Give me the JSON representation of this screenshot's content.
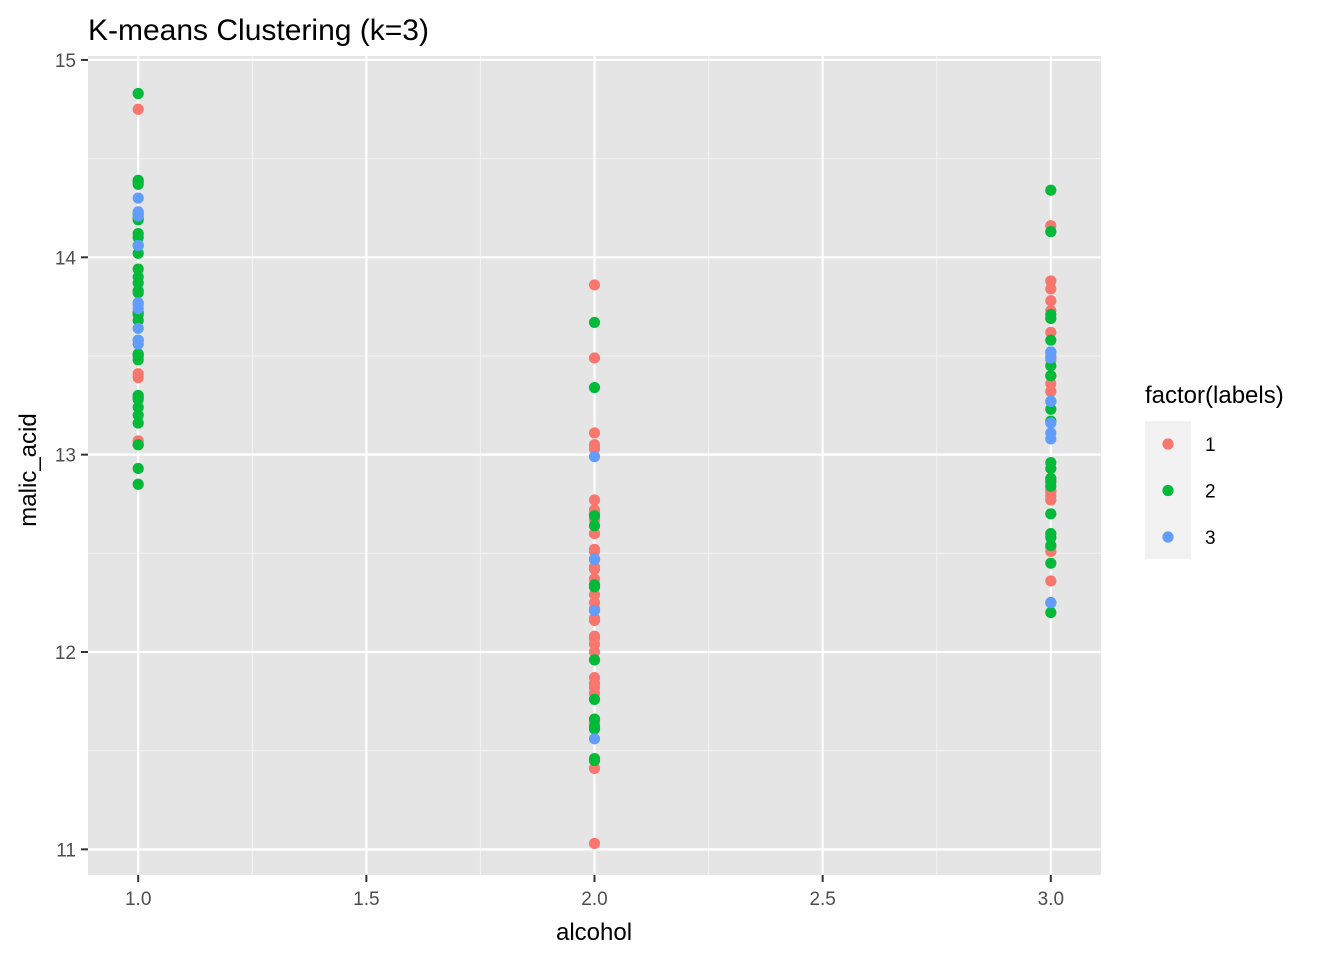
{
  "chart_data": {
    "type": "scatter",
    "title": "K-means Clustering (k=3)",
    "xlabel": "alcohol",
    "ylabel": "malic_acid",
    "xlim": [
      0.89,
      3.11
    ],
    "ylim": [
      10.87,
      15.02
    ],
    "x_ticks": [
      1.0,
      1.5,
      2.0,
      2.5,
      3.0
    ],
    "x_tick_labels": [
      "1.0",
      "1.5",
      "2.0",
      "2.5",
      "3.0"
    ],
    "y_ticks": [
      11,
      12,
      13,
      14,
      15
    ],
    "y_tick_labels": [
      "11",
      "12",
      "13",
      "14",
      "15"
    ],
    "grid": true,
    "legend_title": "factor(labels)",
    "legend_position": "right",
    "series": [
      {
        "name": "1",
        "color": "#F8766D",
        "points": [
          [
            1.0,
            14.75
          ],
          [
            1.0,
            13.41
          ],
          [
            1.0,
            13.39
          ],
          [
            1.0,
            13.05
          ],
          [
            1.0,
            13.07
          ],
          [
            2.0,
            13.86
          ],
          [
            2.0,
            13.49
          ],
          [
            2.0,
            13.11
          ],
          [
            2.0,
            13.05
          ],
          [
            2.0,
            13.03
          ],
          [
            2.0,
            12.77
          ],
          [
            2.0,
            12.72
          ],
          [
            2.0,
            12.7
          ],
          [
            2.0,
            12.67
          ],
          [
            2.0,
            12.6
          ],
          [
            2.0,
            12.52
          ],
          [
            2.0,
            12.51
          ],
          [
            2.0,
            12.43
          ],
          [
            2.0,
            12.42
          ],
          [
            2.0,
            12.37
          ],
          [
            2.0,
            12.29
          ],
          [
            2.0,
            12.25
          ],
          [
            2.0,
            12.22
          ],
          [
            2.0,
            12.17
          ],
          [
            2.0,
            12.16
          ],
          [
            2.0,
            12.08
          ],
          [
            2.0,
            12.07
          ],
          [
            2.0,
            12.04
          ],
          [
            2.0,
            12.0
          ],
          [
            2.0,
            11.87
          ],
          [
            2.0,
            11.84
          ],
          [
            2.0,
            11.82
          ],
          [
            2.0,
            11.79
          ],
          [
            2.0,
            11.65
          ],
          [
            2.0,
            11.64
          ],
          [
            2.0,
            11.41
          ],
          [
            2.0,
            11.03
          ],
          [
            3.0,
            14.16
          ],
          [
            3.0,
            13.88
          ],
          [
            3.0,
            13.84
          ],
          [
            3.0,
            13.78
          ],
          [
            3.0,
            13.73
          ],
          [
            3.0,
            13.62
          ],
          [
            3.0,
            13.48
          ],
          [
            3.0,
            13.4
          ],
          [
            3.0,
            13.36
          ],
          [
            3.0,
            13.32
          ],
          [
            3.0,
            12.87
          ],
          [
            3.0,
            12.82
          ],
          [
            3.0,
            12.81
          ],
          [
            3.0,
            12.79
          ],
          [
            3.0,
            12.77
          ],
          [
            3.0,
            12.53
          ],
          [
            3.0,
            12.51
          ],
          [
            3.0,
            12.36
          ]
        ]
      },
      {
        "name": "2",
        "color": "#00BA38",
        "points": [
          [
            1.0,
            14.83
          ],
          [
            1.0,
            14.39
          ],
          [
            1.0,
            14.38
          ],
          [
            1.0,
            14.37
          ],
          [
            1.0,
            14.22
          ],
          [
            1.0,
            14.2
          ],
          [
            1.0,
            14.19
          ],
          [
            1.0,
            14.12
          ],
          [
            1.0,
            14.1
          ],
          [
            1.0,
            14.06
          ],
          [
            1.0,
            14.02
          ],
          [
            1.0,
            13.94
          ],
          [
            1.0,
            13.9
          ],
          [
            1.0,
            13.87
          ],
          [
            1.0,
            13.83
          ],
          [
            1.0,
            13.82
          ],
          [
            1.0,
            13.72
          ],
          [
            1.0,
            13.71
          ],
          [
            1.0,
            13.68
          ],
          [
            1.0,
            13.58
          ],
          [
            1.0,
            13.51
          ],
          [
            1.0,
            13.5
          ],
          [
            1.0,
            13.48
          ],
          [
            1.0,
            13.3
          ],
          [
            1.0,
            13.29
          ],
          [
            1.0,
            13.28
          ],
          [
            1.0,
            13.24
          ],
          [
            1.0,
            13.2
          ],
          [
            1.0,
            13.16
          ],
          [
            1.0,
            13.05
          ],
          [
            1.0,
            12.93
          ],
          [
            1.0,
            12.85
          ],
          [
            2.0,
            13.67
          ],
          [
            2.0,
            13.34
          ],
          [
            2.0,
            12.69
          ],
          [
            2.0,
            12.64
          ],
          [
            2.0,
            12.47
          ],
          [
            2.0,
            12.34
          ],
          [
            2.0,
            12.33
          ],
          [
            2.0,
            11.96
          ],
          [
            2.0,
            11.76
          ],
          [
            2.0,
            11.66
          ],
          [
            2.0,
            11.62
          ],
          [
            2.0,
            11.61
          ],
          [
            2.0,
            11.46
          ],
          [
            2.0,
            11.45
          ],
          [
            3.0,
            14.34
          ],
          [
            3.0,
            14.13
          ],
          [
            3.0,
            13.71
          ],
          [
            3.0,
            13.69
          ],
          [
            3.0,
            13.58
          ],
          [
            3.0,
            13.52
          ],
          [
            3.0,
            13.45
          ],
          [
            3.0,
            13.4
          ],
          [
            3.0,
            13.27
          ],
          [
            3.0,
            13.23
          ],
          [
            3.0,
            13.17
          ],
          [
            3.0,
            12.96
          ],
          [
            3.0,
            12.93
          ],
          [
            3.0,
            12.88
          ],
          [
            3.0,
            12.86
          ],
          [
            3.0,
            12.84
          ],
          [
            3.0,
            12.7
          ],
          [
            3.0,
            12.6
          ],
          [
            3.0,
            12.58
          ],
          [
            3.0,
            12.54
          ],
          [
            3.0,
            12.45
          ],
          [
            3.0,
            12.25
          ],
          [
            3.0,
            12.2
          ]
        ]
      },
      {
        "name": "3",
        "color": "#619CFF",
        "points": [
          [
            1.0,
            14.3
          ],
          [
            1.0,
            14.23
          ],
          [
            1.0,
            14.21
          ],
          [
            1.0,
            14.06
          ],
          [
            1.0,
            13.77
          ],
          [
            1.0,
            13.76
          ],
          [
            1.0,
            13.74
          ],
          [
            1.0,
            13.64
          ],
          [
            1.0,
            13.56
          ],
          [
            1.0,
            13.58
          ],
          [
            2.0,
            12.99
          ],
          [
            2.0,
            12.47
          ],
          [
            2.0,
            12.21
          ],
          [
            2.0,
            11.56
          ],
          [
            3.0,
            13.52
          ],
          [
            3.0,
            13.5
          ],
          [
            3.0,
            13.49
          ],
          [
            3.0,
            13.27
          ],
          [
            3.0,
            13.16
          ],
          [
            3.0,
            13.11
          ],
          [
            3.0,
            13.08
          ],
          [
            3.0,
            12.25
          ]
        ]
      }
    ]
  }
}
